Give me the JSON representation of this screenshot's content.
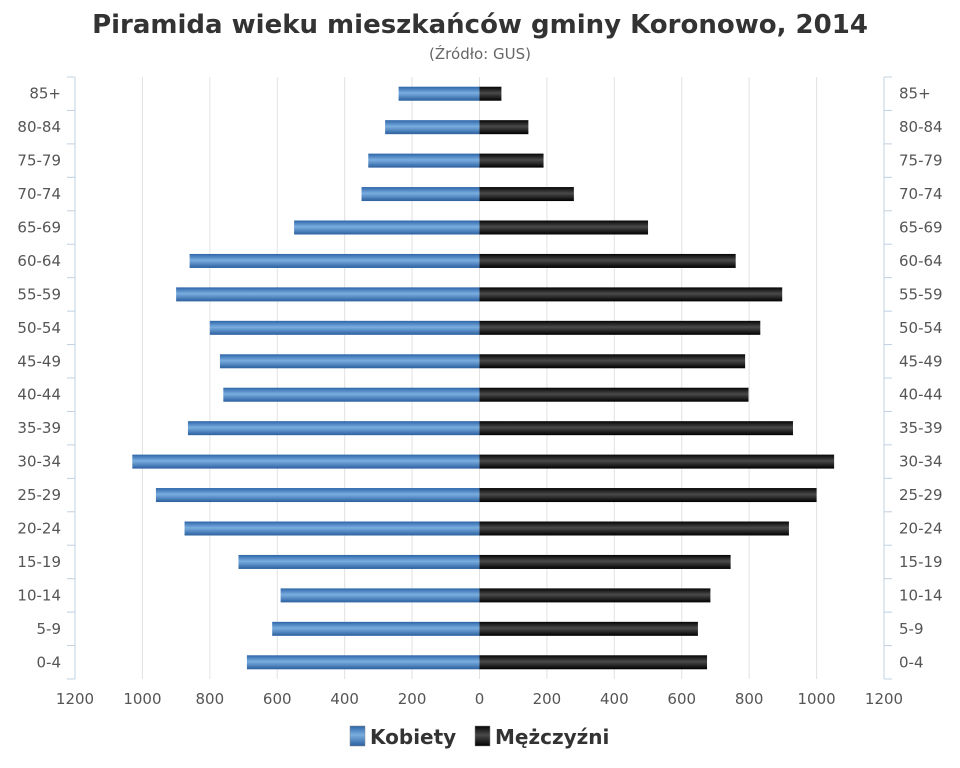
{
  "chart_data": {
    "type": "bar",
    "orientation": "horizontal",
    "title": "Piramida wieku mieszkańców gminy Koronowo, 2014",
    "subtitle": "(Źródło: GUS)",
    "categories": [
      "85+",
      "80-84",
      "75-79",
      "70-74",
      "65-69",
      "60-64",
      "55-59",
      "50-54",
      "45-49",
      "40-44",
      "35-39",
      "30-34",
      "25-29",
      "20-24",
      "15-19",
      "10-14",
      "5-9",
      "0-4"
    ],
    "series": [
      {
        "name": "Kobiety",
        "side": "left",
        "color": "#3f7ec2",
        "values": [
          240,
          280,
          330,
          350,
          550,
          860,
          900,
          800,
          770,
          760,
          865,
          1030,
          960,
          875,
          715,
          590,
          615,
          690
        ]
      },
      {
        "name": "Mężczyźni",
        "side": "right",
        "color": "#111111",
        "values": [
          65,
          145,
          190,
          280,
          500,
          760,
          898,
          833,
          788,
          798,
          930,
          1052,
          1000,
          918,
          745,
          685,
          648,
          675
        ]
      }
    ],
    "xlim": [
      -1200,
      1200
    ],
    "x_ticks": [
      1200,
      1000,
      800,
      600,
      400,
      200,
      0,
      200,
      400,
      600,
      800,
      1000,
      1200
    ],
    "grid": true,
    "legend": "bottom"
  }
}
